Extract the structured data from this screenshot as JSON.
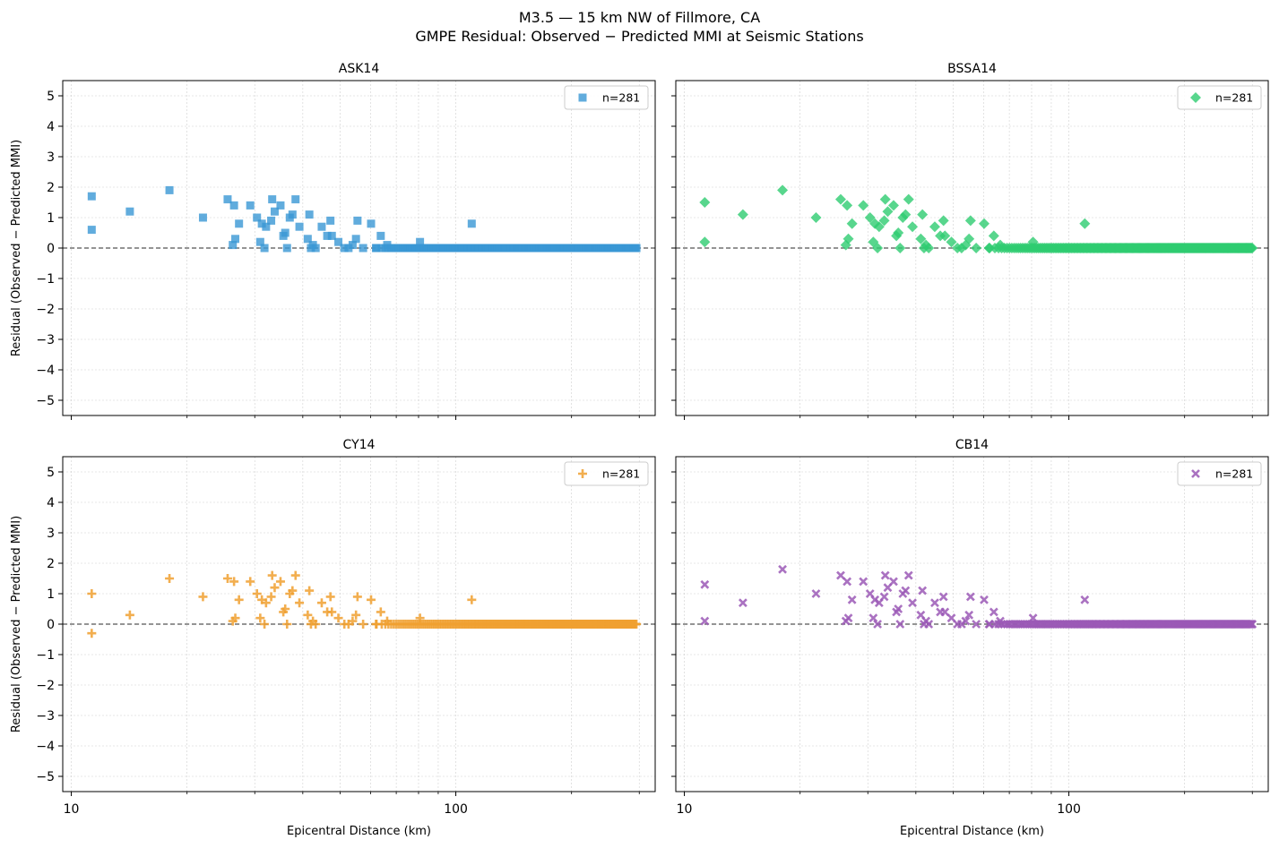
{
  "figure": {
    "title_line1": "M3.5 — 15 km NW of Fillmore, CA",
    "title_line2": "GMPE Residual: Observed − Predicted MMI at Seismic Stations"
  },
  "chart_data": [
    {
      "type": "scatter",
      "title": "ASK14",
      "xlabel": "",
      "ylabel": "Residual (Observed − Predicted MMI)",
      "xscale": "log",
      "xlim": [
        9.5,
        330
      ],
      "ylim": [
        -5.5,
        5.5
      ],
      "yticks": [
        -5,
        -4,
        -3,
        -2,
        -1,
        0,
        1,
        2,
        3,
        4,
        5
      ],
      "xticks": [
        10,
        100
      ],
      "grid": true,
      "legend": {
        "label": "n=281",
        "position": "top-right"
      },
      "marker": "square",
      "color": "#3a97d4",
      "reference_line": 0,
      "points": [
        [
          11.3,
          1.7
        ],
        [
          11.3,
          0.6
        ],
        [
          14.2,
          1.2
        ],
        [
          18,
          1.9
        ],
        [
          22,
          1
        ],
        [
          25.5,
          1.6
        ],
        [
          26.5,
          1.4
        ],
        [
          26.3,
          0.1
        ],
        [
          26.7,
          0.3
        ],
        [
          27.3,
          0.8
        ],
        [
          29.2,
          1.4
        ],
        [
          30.4,
          1
        ],
        [
          31,
          0.2
        ],
        [
          31.3,
          0.8
        ],
        [
          31.8,
          0
        ],
        [
          32.1,
          0.7
        ],
        [
          33.1,
          0.9
        ],
        [
          33.3,
          1.6
        ],
        [
          33.8,
          1.2
        ],
        [
          35,
          1.4
        ],
        [
          35.6,
          0.4
        ],
        [
          36,
          0.5
        ],
        [
          36.4,
          0
        ],
        [
          37,
          1
        ],
        [
          37.6,
          1.1
        ],
        [
          38.3,
          1.6
        ],
        [
          39.2,
          0.7
        ],
        [
          41.2,
          0.3
        ],
        [
          41.6,
          1.1
        ],
        [
          42,
          0
        ],
        [
          42.5,
          0.1
        ],
        [
          43.2,
          0
        ],
        [
          44.8,
          0.7
        ],
        [
          46.3,
          0.4
        ],
        [
          47.2,
          0.9
        ],
        [
          47.6,
          0.4
        ],
        [
          49.5,
          0.2
        ],
        [
          51.3,
          0
        ],
        [
          52.6,
          0
        ],
        [
          53.9,
          0.1
        ],
        [
          55,
          0.3
        ],
        [
          55.5,
          0.9
        ],
        [
          57.4,
          0
        ],
        [
          60.2,
          0.8
        ],
        [
          62.2,
          0
        ],
        [
          63.8,
          0.4
        ],
        [
          66.3,
          0.1
        ],
        [
          80.7,
          0.2
        ],
        [
          110,
          0.8
        ]
      ],
      "zero_points": {
        "from": 62,
        "to": 295,
        "count": 232,
        "y": 0
      }
    },
    {
      "type": "scatter",
      "title": "BSSA14",
      "xlabel": "",
      "ylabel": "",
      "xscale": "log",
      "xlim": [
        9.5,
        330
      ],
      "ylim": [
        -5.5,
        5.5
      ],
      "yticks": [
        -5,
        -4,
        -3,
        -2,
        -1,
        0,
        1,
        2,
        3,
        4,
        5
      ],
      "xticks": [
        10,
        100
      ],
      "grid": true,
      "legend": {
        "label": "n=281",
        "position": "top-right"
      },
      "marker": "diamond",
      "color": "#2ecc71",
      "reference_line": 0,
      "points": [
        [
          11.3,
          1.5
        ],
        [
          11.3,
          0.2
        ],
        [
          14.2,
          1.1
        ],
        [
          18,
          1.9
        ],
        [
          22,
          1
        ],
        [
          25.5,
          1.6
        ],
        [
          26.5,
          1.4
        ],
        [
          26.3,
          0.1
        ],
        [
          26.7,
          0.3
        ],
        [
          27.3,
          0.8
        ],
        [
          29.2,
          1.4
        ],
        [
          30.4,
          1
        ],
        [
          31,
          0.2
        ],
        [
          31.3,
          0.8
        ],
        [
          31.8,
          0
        ],
        [
          32.1,
          0.7
        ],
        [
          33.1,
          0.9
        ],
        [
          33.3,
          1.6
        ],
        [
          33.8,
          1.2
        ],
        [
          35,
          1.4
        ],
        [
          35.6,
          0.4
        ],
        [
          36,
          0.5
        ],
        [
          36.4,
          0
        ],
        [
          37,
          1
        ],
        [
          37.6,
          1.1
        ],
        [
          38.3,
          1.6
        ],
        [
          39.2,
          0.7
        ],
        [
          41.2,
          0.3
        ],
        [
          41.6,
          1.1
        ],
        [
          42,
          0
        ],
        [
          42.5,
          0.1
        ],
        [
          43.2,
          0
        ],
        [
          44.8,
          0.7
        ],
        [
          46.3,
          0.4
        ],
        [
          47.2,
          0.9
        ],
        [
          47.6,
          0.4
        ],
        [
          49.5,
          0.2
        ],
        [
          51.3,
          0
        ],
        [
          52.6,
          0
        ],
        [
          53.9,
          0.1
        ],
        [
          55,
          0.3
        ],
        [
          55.5,
          0.9
        ],
        [
          57.4,
          0
        ],
        [
          60.2,
          0.8
        ],
        [
          62.2,
          0
        ],
        [
          63.8,
          0.4
        ],
        [
          66.3,
          0.1
        ],
        [
          80.7,
          0.2
        ],
        [
          110,
          0.8
        ]
      ],
      "zero_points": {
        "from": 62,
        "to": 300,
        "count": 232,
        "y": 0
      }
    },
    {
      "type": "scatter",
      "title": "CY14",
      "xlabel": "Epicentral Distance (km)",
      "ylabel": "Residual (Observed − Predicted MMI)",
      "xscale": "log",
      "xlim": [
        9.5,
        330
      ],
      "ylim": [
        -5.5,
        5.5
      ],
      "yticks": [
        -5,
        -4,
        -3,
        -2,
        -1,
        0,
        1,
        2,
        3,
        4,
        5
      ],
      "xticks": [
        10,
        100
      ],
      "grid": true,
      "legend": {
        "label": "n=281",
        "position": "top-right"
      },
      "marker": "plus",
      "color": "#f0a030",
      "reference_line": 0,
      "points": [
        [
          11.3,
          1
        ],
        [
          11.3,
          -0.3
        ],
        [
          14.2,
          0.3
        ],
        [
          18,
          1.5
        ],
        [
          22,
          0.9
        ],
        [
          25.5,
          1.5
        ],
        [
          26.5,
          1.4
        ],
        [
          26.3,
          0.1
        ],
        [
          26.7,
          0.2
        ],
        [
          27.3,
          0.8
        ],
        [
          29.2,
          1.4
        ],
        [
          30.4,
          1
        ],
        [
          31,
          0.2
        ],
        [
          31.3,
          0.8
        ],
        [
          31.8,
          0
        ],
        [
          32.1,
          0.7
        ],
        [
          33.1,
          0.9
        ],
        [
          33.3,
          1.6
        ],
        [
          33.8,
          1.2
        ],
        [
          35,
          1.4
        ],
        [
          35.6,
          0.4
        ],
        [
          36,
          0.5
        ],
        [
          36.4,
          0
        ],
        [
          37,
          1
        ],
        [
          37.6,
          1.1
        ],
        [
          38.3,
          1.6
        ],
        [
          39.2,
          0.7
        ],
        [
          41.2,
          0.3
        ],
        [
          41.6,
          1.1
        ],
        [
          42,
          0
        ],
        [
          42.5,
          0.1
        ],
        [
          43.2,
          0
        ],
        [
          44.8,
          0.7
        ],
        [
          46.3,
          0.4
        ],
        [
          47.2,
          0.9
        ],
        [
          47.6,
          0.4
        ],
        [
          49.5,
          0.2
        ],
        [
          51.3,
          0
        ],
        [
          52.6,
          0
        ],
        [
          53.9,
          0.1
        ],
        [
          55,
          0.3
        ],
        [
          55.5,
          0.9
        ],
        [
          57.4,
          0
        ],
        [
          60.2,
          0.8
        ],
        [
          62.2,
          0
        ],
        [
          63.8,
          0.4
        ],
        [
          66.3,
          0.1
        ],
        [
          80.7,
          0.2
        ],
        [
          110,
          0.8
        ]
      ],
      "zero_points": {
        "from": 62,
        "to": 295,
        "count": 232,
        "y": 0
      }
    },
    {
      "type": "scatter",
      "title": "CB14",
      "xlabel": "Epicentral Distance (km)",
      "ylabel": "",
      "xscale": "log",
      "xlim": [
        9.5,
        330
      ],
      "ylim": [
        -5.5,
        5.5
      ],
      "yticks": [
        -5,
        -4,
        -3,
        -2,
        -1,
        0,
        1,
        2,
        3,
        4,
        5
      ],
      "xticks": [
        10,
        100
      ],
      "grid": true,
      "legend": {
        "label": "n=281",
        "position": "top-right"
      },
      "marker": "x",
      "color": "#9b59b6",
      "reference_line": 0,
      "points": [
        [
          11.3,
          1.3
        ],
        [
          11.3,
          0.1
        ],
        [
          14.2,
          0.7
        ],
        [
          18,
          1.8
        ],
        [
          22,
          1
        ],
        [
          25.5,
          1.6
        ],
        [
          26.5,
          1.4
        ],
        [
          26.3,
          0.1
        ],
        [
          26.7,
          0.2
        ],
        [
          27.3,
          0.8
        ],
        [
          29.2,
          1.4
        ],
        [
          30.4,
          1
        ],
        [
          31,
          0.2
        ],
        [
          31.3,
          0.8
        ],
        [
          31.8,
          0
        ],
        [
          32.1,
          0.7
        ],
        [
          33.1,
          0.9
        ],
        [
          33.3,
          1.6
        ],
        [
          33.8,
          1.2
        ],
        [
          35,
          1.4
        ],
        [
          35.6,
          0.4
        ],
        [
          36,
          0.5
        ],
        [
          36.4,
          0
        ],
        [
          37,
          1
        ],
        [
          37.6,
          1.1
        ],
        [
          38.3,
          1.6
        ],
        [
          39.2,
          0.7
        ],
        [
          41.2,
          0.3
        ],
        [
          41.6,
          1.1
        ],
        [
          42,
          0
        ],
        [
          42.5,
          0.1
        ],
        [
          43.2,
          0
        ],
        [
          44.8,
          0.7
        ],
        [
          46.3,
          0.4
        ],
        [
          47.2,
          0.9
        ],
        [
          47.6,
          0.4
        ],
        [
          49.5,
          0.2
        ],
        [
          51.3,
          0
        ],
        [
          52.6,
          0
        ],
        [
          53.9,
          0.1
        ],
        [
          55,
          0.3
        ],
        [
          55.5,
          0.9
        ],
        [
          57.4,
          0
        ],
        [
          60.2,
          0.8
        ],
        [
          62.2,
          0
        ],
        [
          63.8,
          0.4
        ],
        [
          66.3,
          0.1
        ],
        [
          80.7,
          0.2
        ],
        [
          110,
          0.8
        ]
      ],
      "zero_points": {
        "from": 62,
        "to": 300,
        "count": 232,
        "y": 0
      }
    }
  ]
}
